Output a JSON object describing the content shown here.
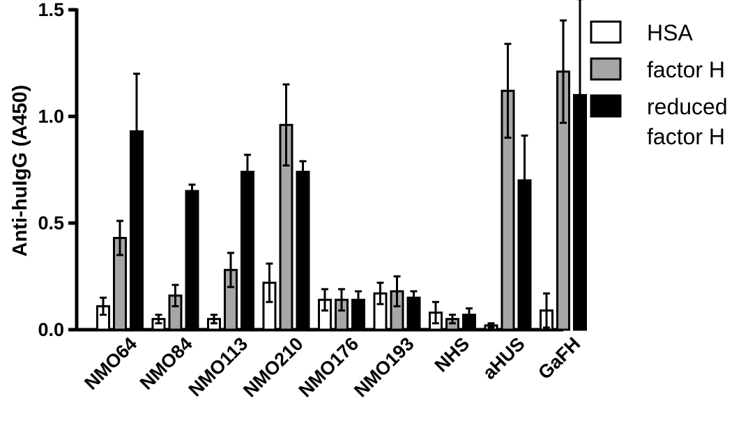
{
  "chart_data": {
    "type": "bar",
    "ylabel": "Anti-huIgG (A450)",
    "xlabel": "",
    "ylim": [
      0,
      1.5
    ],
    "yticks": [
      "0.0",
      "0.5",
      "1.0",
      "1.5"
    ],
    "ytick_values": [
      0,
      0.5,
      1.0,
      1.5
    ],
    "categories": [
      "NMO64",
      "NMO84",
      "NMO113",
      "NMO210",
      "NMO176",
      "NMO193",
      "NHS",
      "aHUS",
      "GaFH"
    ],
    "series": [
      {
        "name": "HSA",
        "color": "#ffffff",
        "values": [
          0.11,
          0.05,
          0.05,
          0.22,
          0.14,
          0.17,
          0.08,
          0.02,
          0.09
        ],
        "errors": [
          0.04,
          0.02,
          0.02,
          0.09,
          0.05,
          0.05,
          0.05,
          0.01,
          0.08
        ]
      },
      {
        "name": "factor H",
        "color": "#a6a6a6",
        "values": [
          0.43,
          0.16,
          0.28,
          0.96,
          0.14,
          0.18,
          0.05,
          1.12,
          1.21
        ],
        "errors": [
          0.08,
          0.05,
          0.08,
          0.19,
          0.05,
          0.07,
          0.02,
          0.22,
          0.24
        ]
      },
      {
        "name": "reduced factor H",
        "color": "#000000",
        "values": [
          0.93,
          0.65,
          0.74,
          0.74,
          0.14,
          0.15,
          0.07,
          0.7,
          1.1
        ],
        "errors": [
          0.27,
          0.03,
          0.08,
          0.05,
          0.04,
          0.03,
          0.03,
          0.21,
          0.45
        ]
      }
    ],
    "legend": {
      "position": "top-right",
      "lines": [
        [
          "HSA"
        ],
        [
          "factor H"
        ],
        [
          "reduced",
          "factor H"
        ]
      ]
    },
    "grid": false
  }
}
